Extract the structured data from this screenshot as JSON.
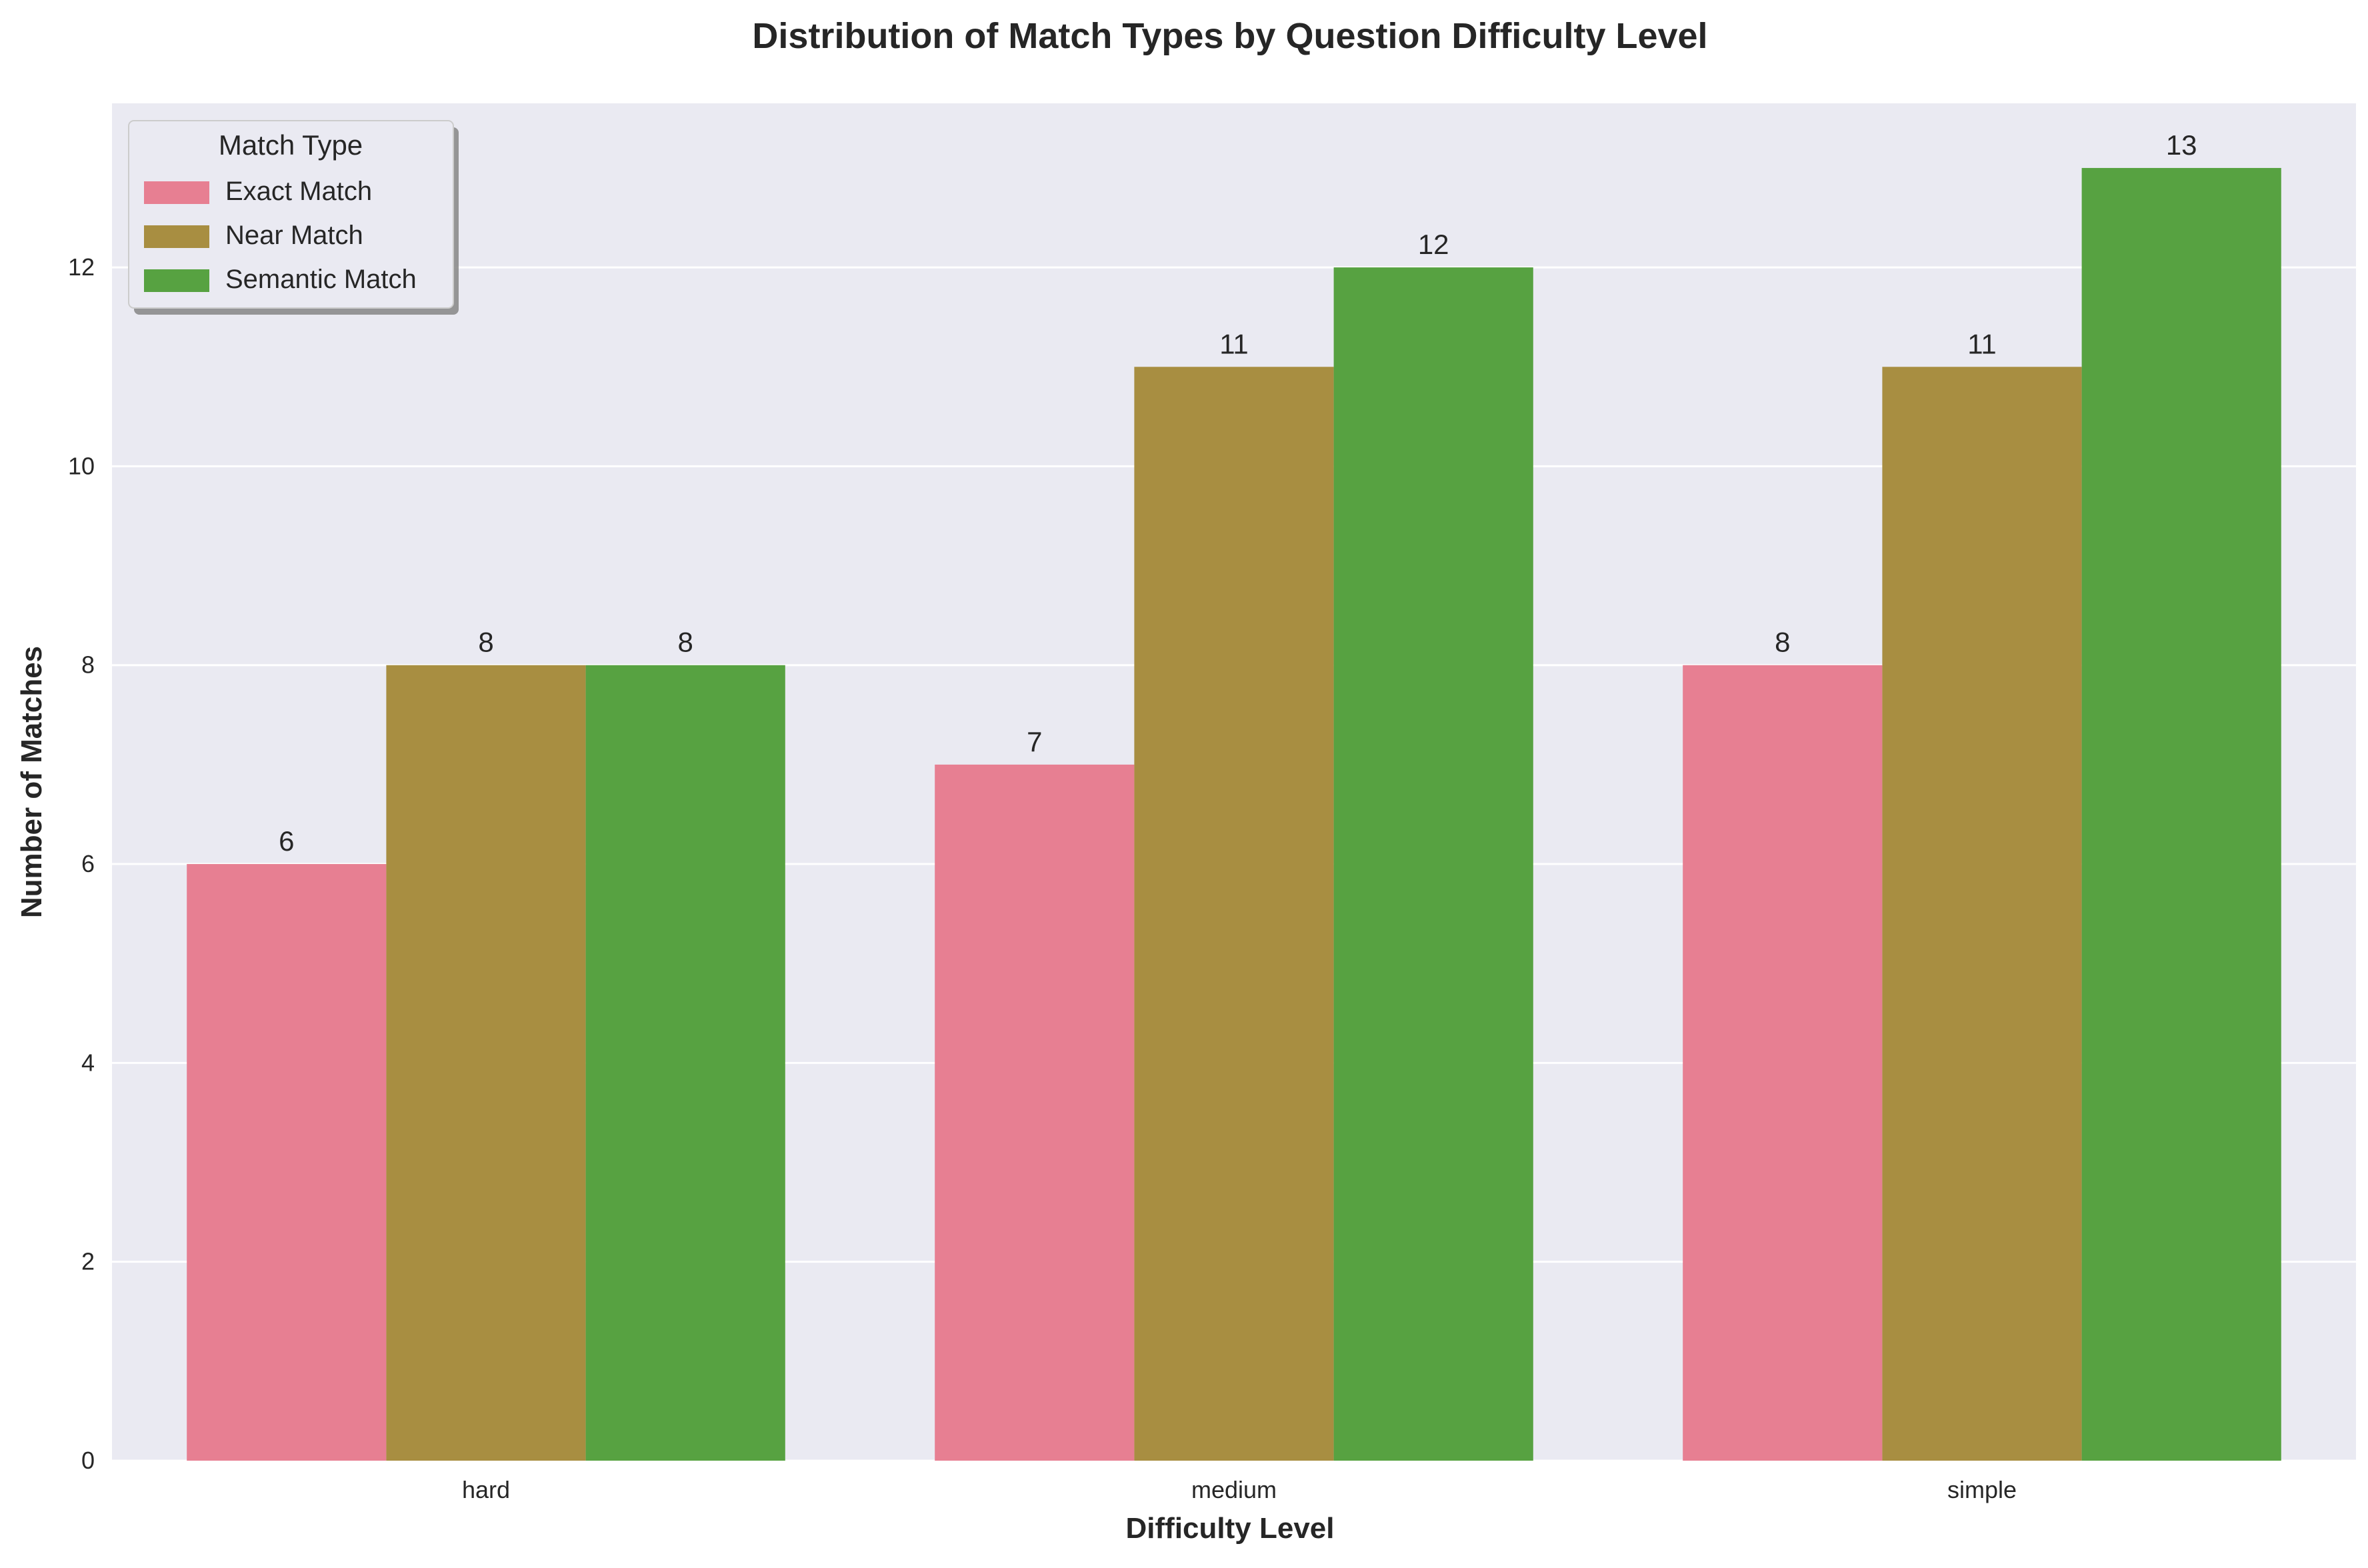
{
  "chart_data": {
    "type": "bar",
    "title": "Distribution of Match Types by Question Difficulty Level",
    "xlabel": "Difficulty Level",
    "ylabel": "Number of Matches",
    "categories": [
      "hard",
      "medium",
      "simple"
    ],
    "series": [
      {
        "name": "Exact Match",
        "values": [
          6,
          7,
          8
        ],
        "color": "#e77f92"
      },
      {
        "name": "Near Match",
        "values": [
          8,
          11,
          11
        ],
        "color": "#a88e41"
      },
      {
        "name": "Semantic Match",
        "values": [
          8,
          12,
          13
        ],
        "color": "#57a241"
      }
    ],
    "ylim": [
      0,
      13.65
    ],
    "yticks": [
      0,
      2,
      4,
      6,
      8,
      10,
      12
    ],
    "grid": true,
    "legend": {
      "title": "Match Type",
      "placement": "top-left"
    },
    "colors": {
      "plot_background": "#eaeaf2",
      "grid": "#ffffff",
      "text": "#262626"
    }
  }
}
